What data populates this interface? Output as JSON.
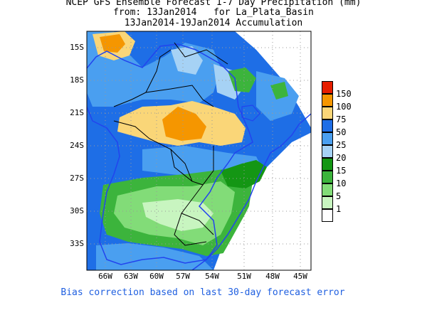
{
  "title": {
    "line1": "NCEP GFS Ensemble Forecast 1-7 Day Precipitation (mm)",
    "line2": "from: 13Jan2014   for La_Plata_Basin",
    "line3": "13Jan2014-19Jan2014 Accumulation"
  },
  "map": {
    "lat_labels": [
      "15S",
      "18S",
      "21S",
      "24S",
      "27S",
      "30S",
      "33S"
    ],
    "lon_labels": [
      "66W",
      "63W",
      "60W",
      "57W",
      "54W",
      "51W",
      "48W",
      "45W"
    ]
  },
  "legend": {
    "labels": [
      "150",
      "100",
      "75",
      "50",
      "25",
      "20",
      "15",
      "10",
      "5",
      "1"
    ],
    "colors": [
      "#ffffff",
      "#c8f5c0",
      "#82dc78",
      "#3cb43c",
      "#149614",
      "#a6d2f5",
      "#4a9ff0",
      "#1e6ee6",
      "#fad678",
      "#f59600",
      "#e61e00"
    ]
  },
  "footer": "Bias correction based on last 30-day forecast error"
}
